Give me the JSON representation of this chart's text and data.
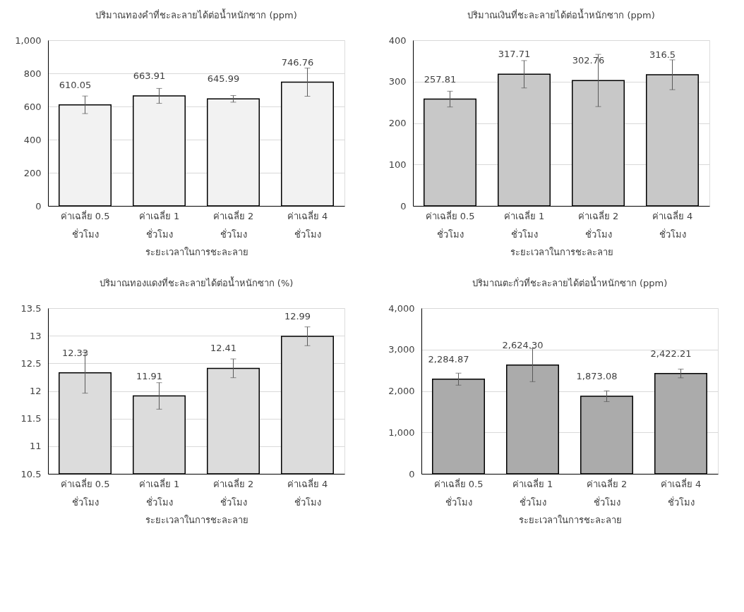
{
  "chart_data": [
    {
      "type": "bar",
      "title": "ปริมาณทองคำที่ชะละลายได้ต่อน้ำหนักซาก (ppm)",
      "xlabel": "ระยะเวลาในการชะละลาย",
      "categories": [
        "ค่าเฉลี่ย 0.5\nชั่วโมง",
        "ค่าเฉลี่ย 1\nชั่วโมง",
        "ค่าเฉลี่ย 2\nชั่วโมง",
        "ค่าเฉลี่ย 4\nชั่วโมง"
      ],
      "values": [
        610.05,
        663.91,
        645.99,
        746.76
      ],
      "errors": [
        53,
        45,
        20,
        85
      ],
      "value_labels": [
        "610.05",
        "663.91",
        "645.99",
        "746.76"
      ],
      "color": "#f2f2f2",
      "ylim": [
        0,
        1000
      ],
      "yticks": [
        0,
        200,
        400,
        600,
        800,
        {
          "value": 1000,
          "label": "1,000"
        }
      ],
      "grid": "y"
    },
    {
      "type": "bar",
      "title": "ปริมาณเงินที่ชะละลายได้ต่อน้ำหนักซาก (ppm)",
      "xlabel": "ระยะเวลาในการชะละลาย",
      "categories": [
        "ค่าเฉลี่ย 0.5\nชั่วโมง",
        "ค่าเฉลี่ย 1\nชั่วโมง",
        "ค่าเฉลี่ย 2\nชั่วโมง",
        "ค่าเฉลี่ย 4\nชั่วโมง"
      ],
      "values": [
        257.81,
        317.71,
        302.76,
        316.5
      ],
      "errors": [
        19,
        33,
        63,
        36
      ],
      "value_labels": [
        "257.81",
        "317.71",
        "302.76",
        "316.5"
      ],
      "color": "#c8c8c8",
      "ylim": [
        0,
        400
      ],
      "yticks": [
        0,
        100,
        200,
        300,
        400
      ],
      "grid": "y"
    },
    {
      "type": "bar",
      "title": "ปริมาณทองแดงที่ชะละลายได้ต่อน้ำหนักซาก (%)",
      "xlabel": "ระยะเวลาในการชะละลาย",
      "categories": [
        "ค่าเฉลี่ย 0.5\nชั่วโมง",
        "ค่าเฉลี่ย 1\nชั่วโมง",
        "ค่าเฉลี่ย 2\nชั่วโมง",
        "ค่าเฉลี่ย 4\nชั่วโมง"
      ],
      "values": [
        12.33,
        11.91,
        12.41,
        12.99
      ],
      "errors": [
        0.37,
        0.24,
        0.17,
        0.17
      ],
      "value_labels": [
        "12.33",
        "11.91",
        "12.41",
        "12.99"
      ],
      "color": "#dcdcdc",
      "ylim": [
        10.5,
        13.5
      ],
      "yticks": [
        10.5,
        11,
        11.5,
        12,
        12.5,
        13,
        13.5
      ],
      "grid": "y"
    },
    {
      "type": "bar",
      "title": "ปริมาณตะกั่วที่ชะละลายได้ต่อน้ำหนักซาก (ppm)",
      "xlabel": "ระยะเวลาในการชะละลาย",
      "categories": [
        "ค่าเฉลี่ย 0.5\nชั่วโมง",
        "ค่าเฉลี่ย 1\nชั่วโมง",
        "ค่าเฉลี่ย 2\nชั่วโมง",
        "ค่าเฉลี่ย 4\nชั่วโมง"
      ],
      "values": [
        2284.87,
        2624.3,
        1873.08,
        2422.21
      ],
      "errors": [
        145,
        400,
        130,
        105
      ],
      "value_labels": [
        "2,284.87",
        "2,624.30",
        "1,873.08",
        "2,422.21"
      ],
      "color": "#ababab",
      "ylim": [
        0,
        4000
      ],
      "yticks": [
        0,
        {
          "value": 1000,
          "label": "1,000"
        },
        {
          "value": 2000,
          "label": "2,000"
        },
        {
          "value": 3000,
          "label": "3,000"
        },
        {
          "value": 4000,
          "label": "4,000"
        }
      ],
      "grid": "y"
    }
  ]
}
